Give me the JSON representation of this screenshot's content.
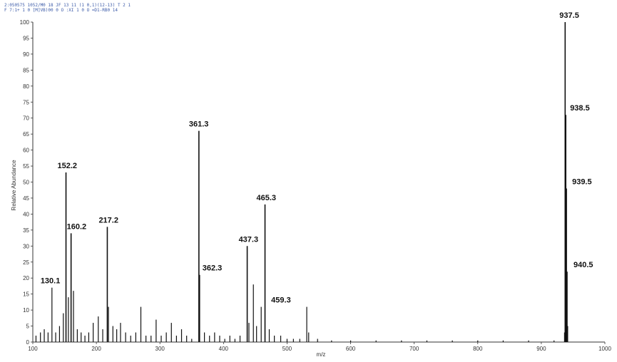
{
  "header": {
    "line1": "2:050575 1052/M0 18 JF 13 11 (1 0,1)(12-13) T 2 1",
    "line2": "F 7:1+ 1 0 [M]VB)00 0 O :XI 1 0 O =D1-RB0 14"
  },
  "chart_data": {
    "type": "bar",
    "title": "",
    "xlabel": "m/z",
    "ylabel": "Relative Abundance",
    "xlim": [
      100,
      1000
    ],
    "ylim": [
      0,
      100
    ],
    "xticks": [
      100,
      200,
      300,
      400,
      500,
      600,
      700,
      800,
      900,
      1000
    ],
    "yticks": [
      0,
      5,
      10,
      15,
      20,
      25,
      30,
      35,
      40,
      45,
      50,
      55,
      60,
      65,
      70,
      75,
      80,
      85,
      90,
      95,
      100
    ],
    "grid": false,
    "peaks": [
      {
        "mz": 105,
        "intensity": 2
      },
      {
        "mz": 112,
        "intensity": 3
      },
      {
        "mz": 118,
        "intensity": 4
      },
      {
        "mz": 124,
        "intensity": 3
      },
      {
        "mz": 130.1,
        "intensity": 17,
        "label": "130.1"
      },
      {
        "mz": 136,
        "intensity": 3
      },
      {
        "mz": 142,
        "intensity": 5
      },
      {
        "mz": 148,
        "intensity": 9
      },
      {
        "mz": 152.2,
        "intensity": 53,
        "label": "152.2"
      },
      {
        "mz": 156,
        "intensity": 14
      },
      {
        "mz": 160.2,
        "intensity": 34,
        "label": "160.2"
      },
      {
        "mz": 164,
        "intensity": 16
      },
      {
        "mz": 170,
        "intensity": 4
      },
      {
        "mz": 176,
        "intensity": 3
      },
      {
        "mz": 182,
        "intensity": 2
      },
      {
        "mz": 188,
        "intensity": 3
      },
      {
        "mz": 195,
        "intensity": 6
      },
      {
        "mz": 203,
        "intensity": 8
      },
      {
        "mz": 210,
        "intensity": 4
      },
      {
        "mz": 217.2,
        "intensity": 36,
        "label": "217.2"
      },
      {
        "mz": 219,
        "intensity": 11
      },
      {
        "mz": 226,
        "intensity": 5
      },
      {
        "mz": 232,
        "intensity": 4
      },
      {
        "mz": 238,
        "intensity": 6
      },
      {
        "mz": 246,
        "intensity": 3
      },
      {
        "mz": 254,
        "intensity": 2
      },
      {
        "mz": 262,
        "intensity": 3
      },
      {
        "mz": 270,
        "intensity": 11
      },
      {
        "mz": 278,
        "intensity": 2
      },
      {
        "mz": 286,
        "intensity": 2
      },
      {
        "mz": 294,
        "intensity": 7
      },
      {
        "mz": 302,
        "intensity": 2
      },
      {
        "mz": 310,
        "intensity": 3
      },
      {
        "mz": 318,
        "intensity": 6
      },
      {
        "mz": 326,
        "intensity": 2
      },
      {
        "mz": 334,
        "intensity": 4
      },
      {
        "mz": 342,
        "intensity": 2
      },
      {
        "mz": 350,
        "intensity": 1
      },
      {
        "mz": 361.3,
        "intensity": 66,
        "label": "361.3"
      },
      {
        "mz": 362.3,
        "intensity": 21,
        "label": "362.3"
      },
      {
        "mz": 370,
        "intensity": 3
      },
      {
        "mz": 378,
        "intensity": 2
      },
      {
        "mz": 386,
        "intensity": 3
      },
      {
        "mz": 394,
        "intensity": 2
      },
      {
        "mz": 402,
        "intensity": 1
      },
      {
        "mz": 410,
        "intensity": 2
      },
      {
        "mz": 418,
        "intensity": 1
      },
      {
        "mz": 426,
        "intensity": 2
      },
      {
        "mz": 437.3,
        "intensity": 30,
        "label": "437.3"
      },
      {
        "mz": 440,
        "intensity": 6
      },
      {
        "mz": 447,
        "intensity": 18
      },
      {
        "mz": 452,
        "intensity": 5
      },
      {
        "mz": 459.3,
        "intensity": 11,
        "label": "459.3"
      },
      {
        "mz": 465.3,
        "intensity": 43,
        "label": "465.3"
      },
      {
        "mz": 472,
        "intensity": 4
      },
      {
        "mz": 480,
        "intensity": 2
      },
      {
        "mz": 490,
        "intensity": 2
      },
      {
        "mz": 500,
        "intensity": 1
      },
      {
        "mz": 510,
        "intensity": 1
      },
      {
        "mz": 520,
        "intensity": 1
      },
      {
        "mz": 531,
        "intensity": 11
      },
      {
        "mz": 534,
        "intensity": 3
      },
      {
        "mz": 548,
        "intensity": 1
      },
      {
        "mz": 570,
        "intensity": 0.5
      },
      {
        "mz": 600,
        "intensity": 0.5
      },
      {
        "mz": 640,
        "intensity": 0.5
      },
      {
        "mz": 680,
        "intensity": 0.5
      },
      {
        "mz": 720,
        "intensity": 0.5
      },
      {
        "mz": 760,
        "intensity": 0.5
      },
      {
        "mz": 800,
        "intensity": 0.5
      },
      {
        "mz": 840,
        "intensity": 0.5
      },
      {
        "mz": 880,
        "intensity": 0.5
      },
      {
        "mz": 920,
        "intensity": 0.5
      },
      {
        "mz": 936.5,
        "intensity": 3
      },
      {
        "mz": 937.5,
        "intensity": 100,
        "label": "937.5"
      },
      {
        "mz": 938.5,
        "intensity": 71,
        "label": "938.5"
      },
      {
        "mz": 939.5,
        "intensity": 48,
        "label": "939.5"
      },
      {
        "mz": 940.5,
        "intensity": 22,
        "label": "940.5"
      },
      {
        "mz": 941.5,
        "intensity": 5
      }
    ],
    "colors": {
      "peak": "#111111",
      "axis": "#333333",
      "header": "#3b5aa8"
    }
  }
}
